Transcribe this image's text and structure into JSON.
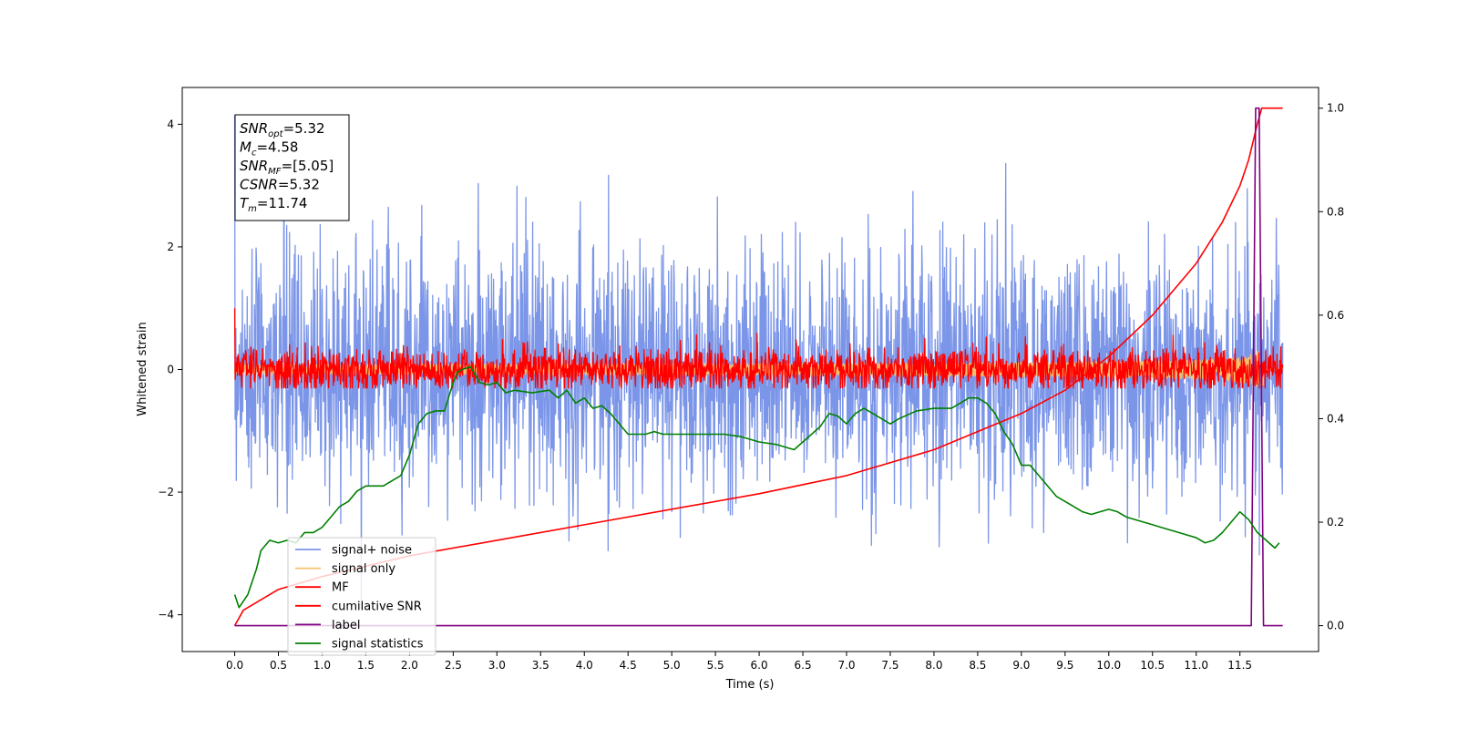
{
  "chart_data": {
    "type": "line",
    "xlabel": "Time (s)",
    "ylabel": "Whitened strain",
    "xlim": [
      -0.6,
      12.4
    ],
    "ylim": [
      -4.6,
      4.6
    ],
    "y2lim": [
      -0.05,
      1.04
    ],
    "x_ticks": [
      0.0,
      0.5,
      1.0,
      1.5,
      2.0,
      2.5,
      3.0,
      3.5,
      4.0,
      4.5,
      5.0,
      5.5,
      6.0,
      6.5,
      7.0,
      7.5,
      8.0,
      8.5,
      9.0,
      9.5,
      10.0,
      10.5,
      11.0,
      11.5
    ],
    "x_tick_labels": [
      "0.0",
      "0.5",
      "1.0",
      "1.5",
      "2.0",
      "2.5",
      "3.0",
      "3.5",
      "4.0",
      "4.5",
      "5.0",
      "5.5",
      "6.0",
      "6.5",
      "7.0",
      "7.5",
      "8.0",
      "8.5",
      "9.0",
      "9.5",
      "10.0",
      "10.5",
      "11.0",
      "11.5"
    ],
    "y_ticks": [
      -4,
      -2,
      0,
      2,
      4
    ],
    "y_tick_labels": [
      "−4",
      "−2",
      "0",
      "2",
      "4"
    ],
    "y2_ticks": [
      0.0,
      0.2,
      0.4,
      0.6,
      0.8,
      1.0
    ],
    "y2_tick_labels": [
      "0.0",
      "0.2",
      "0.4",
      "0.6",
      "0.8",
      "1.0"
    ],
    "grid": false,
    "legend_position": "lower-left",
    "annotation": [
      {
        "sym": "SNR",
        "sub": "opt",
        "val": "=5.32"
      },
      {
        "sym": "M",
        "sub": "c",
        "val": "=4.58"
      },
      {
        "sym": "SNR",
        "sub": "MF",
        "val": "=[5.05]"
      },
      {
        "sym": "CSNR",
        "sub": "",
        "val": "=5.32"
      },
      {
        "sym": "T",
        "sub": "m",
        "val": "=11.74"
      }
    ],
    "series": [
      {
        "name": "signal+ noise",
        "color": "#7b95e8",
        "axis": "left",
        "kind": "noise",
        "t_range": [
          0.0,
          11.99
        ],
        "center": 0.0,
        "amplitude": 1.0,
        "min": -4.1,
        "max": 4.15
      },
      {
        "name": "signal only",
        "color": "#f5c26b",
        "axis": "left",
        "kind": "chirp",
        "t_range": [
          0.0,
          11.99
        ],
        "amplitude_max": 0.3
      },
      {
        "name": "MF",
        "color": "#ff0000",
        "axis": "left",
        "kind": "noise",
        "t_range": [
          0.0,
          11.99
        ],
        "center": 0.0,
        "amplitude": 0.18,
        "min": -0.3,
        "max": 1.0
      },
      {
        "name": "cumilative SNR",
        "color": "#ff0000",
        "axis": "right",
        "x": [
          0.0,
          0.1,
          0.5,
          1.0,
          2.0,
          3.0,
          4.0,
          5.0,
          6.0,
          7.0,
          8.0,
          9.0,
          9.5,
          10.0,
          10.5,
          11.0,
          11.3,
          11.5,
          11.6,
          11.7,
          11.75,
          11.99
        ],
        "values": [
          0.0,
          0.03,
          0.07,
          0.095,
          0.135,
          0.165,
          0.195,
          0.225,
          0.255,
          0.29,
          0.34,
          0.41,
          0.455,
          0.52,
          0.6,
          0.7,
          0.78,
          0.85,
          0.9,
          0.97,
          1.0,
          1.0
        ]
      },
      {
        "name": "label",
        "color": "#800080",
        "axis": "right",
        "x": [
          0.0,
          11.63,
          11.68,
          11.72,
          11.77,
          11.99
        ],
        "values": [
          0.0,
          0.0,
          1.0,
          1.0,
          0.0,
          0.0
        ]
      },
      {
        "name": "signal statistics",
        "color": "#008000",
        "axis": "right",
        "x": [
          0.0,
          0.05,
          0.15,
          0.25,
          0.3,
          0.4,
          0.5,
          0.6,
          0.7,
          0.8,
          0.9,
          1.0,
          1.1,
          1.2,
          1.3,
          1.4,
          1.5,
          1.6,
          1.7,
          1.8,
          1.9,
          2.0,
          2.1,
          2.2,
          2.3,
          2.4,
          2.5,
          2.55,
          2.6,
          2.7,
          2.8,
          2.9,
          3.0,
          3.1,
          3.2,
          3.4,
          3.6,
          3.7,
          3.8,
          3.9,
          4.0,
          4.1,
          4.2,
          4.3,
          4.4,
          4.5,
          4.6,
          4.7,
          4.8,
          4.9,
          5.0,
          5.2,
          5.4,
          5.5,
          5.6,
          5.8,
          6.0,
          6.2,
          6.4,
          6.5,
          6.6,
          6.7,
          6.8,
          6.9,
          7.0,
          7.1,
          7.2,
          7.3,
          7.4,
          7.5,
          7.6,
          7.8,
          8.0,
          8.2,
          8.3,
          8.4,
          8.5,
          8.6,
          8.7,
          8.8,
          8.9,
          9.0,
          9.1,
          9.2,
          9.3,
          9.4,
          9.5,
          9.6,
          9.7,
          9.8,
          9.9,
          10.0,
          10.1,
          10.2,
          10.4,
          10.6,
          10.8,
          10.9,
          11.0,
          11.1,
          11.2,
          11.3,
          11.4,
          11.5,
          11.6,
          11.7,
          11.8,
          11.9,
          11.95
        ],
        "values": [
          0.06,
          0.035,
          0.06,
          0.11,
          0.145,
          0.165,
          0.16,
          0.165,
          0.16,
          0.18,
          0.18,
          0.19,
          0.21,
          0.23,
          0.24,
          0.26,
          0.27,
          0.27,
          0.27,
          0.28,
          0.29,
          0.33,
          0.39,
          0.41,
          0.415,
          0.415,
          0.47,
          0.49,
          0.495,
          0.5,
          0.47,
          0.465,
          0.47,
          0.45,
          0.455,
          0.45,
          0.455,
          0.44,
          0.455,
          0.43,
          0.44,
          0.42,
          0.425,
          0.41,
          0.39,
          0.37,
          0.37,
          0.37,
          0.375,
          0.37,
          0.37,
          0.37,
          0.37,
          0.37,
          0.37,
          0.365,
          0.355,
          0.35,
          0.34,
          0.355,
          0.37,
          0.385,
          0.41,
          0.405,
          0.39,
          0.41,
          0.42,
          0.41,
          0.4,
          0.39,
          0.4,
          0.415,
          0.42,
          0.42,
          0.43,
          0.44,
          0.44,
          0.43,
          0.41,
          0.375,
          0.35,
          0.31,
          0.31,
          0.29,
          0.27,
          0.25,
          0.24,
          0.23,
          0.22,
          0.215,
          0.22,
          0.225,
          0.22,
          0.21,
          0.2,
          0.19,
          0.18,
          0.175,
          0.17,
          0.16,
          0.165,
          0.18,
          0.2,
          0.22,
          0.205,
          0.18,
          0.165,
          0.15,
          0.16
        ]
      }
    ]
  }
}
